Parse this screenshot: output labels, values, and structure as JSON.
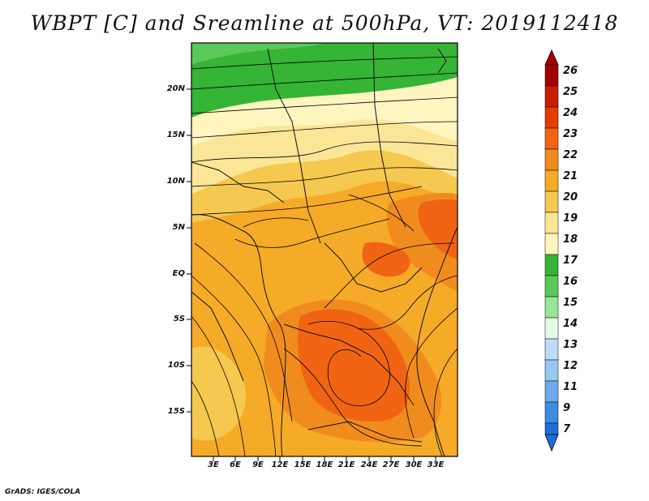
{
  "title": "WBPT [C] and Sreamline at 500hPa, VT: 2019112418",
  "footer": "GrADS: IGES/COLA",
  "axes": {
    "lat_labels": [
      "20N",
      "15N",
      "10N",
      "5N",
      "EQ",
      "5S",
      "10S",
      "15S"
    ],
    "lon_labels": [
      "3E",
      "6E",
      "9E",
      "12E",
      "15E",
      "18E",
      "21E",
      "24E",
      "27E",
      "30E",
      "33E"
    ]
  },
  "colorbar": {
    "levels": [
      "26",
      "25",
      "24",
      "23",
      "22",
      "21",
      "20",
      "19",
      "18",
      "17",
      "16",
      "15",
      "14",
      "13",
      "12",
      "11",
      "9",
      "7"
    ],
    "colors": [
      "#a50000",
      "#c81e00",
      "#e63c00",
      "#f06414",
      "#f08c1e",
      "#f5aa28",
      "#f5c850",
      "#fae696",
      "#fff5bf",
      "#35b435",
      "#5ac85a",
      "#96e696",
      "#e6fae6",
      "#bedcf5",
      "#96c8f0",
      "#6eaaeb",
      "#3c8ce1",
      "#1e6ed7"
    ]
  }
}
